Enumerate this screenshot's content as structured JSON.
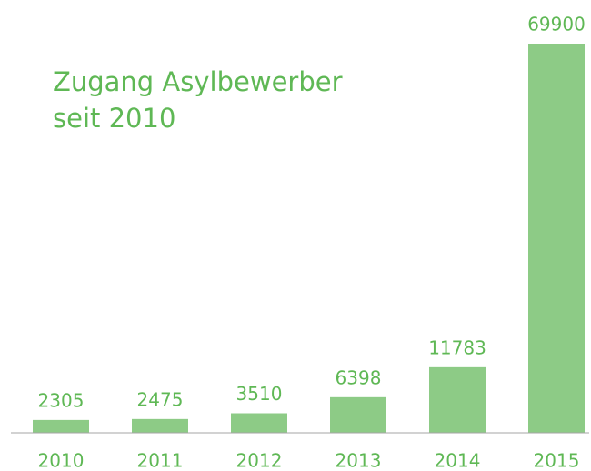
{
  "chart_data": {
    "type": "bar",
    "title": [
      "Zugang Asylbewerber",
      "seit 2010"
    ],
    "categories": [
      "2010",
      "2011",
      "2012",
      "2013",
      "2014",
      "2015"
    ],
    "values": [
      2305,
      2475,
      3510,
      6398,
      11783,
      69900
    ],
    "color": "#8dcb86",
    "text_color": "#5fb855"
  }
}
